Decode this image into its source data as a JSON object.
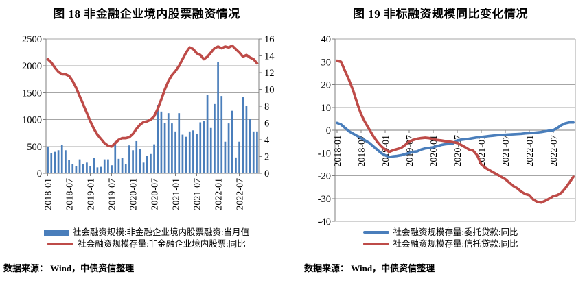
{
  "chart_data": [
    {
      "type": "bar+line",
      "title": "图 18 非金融企业境内股票融资情况",
      "source": "数据来源： Wind，中债资信整理",
      "x_start": "2018-01",
      "x_tick_labels": [
        "2018-01",
        "2018-07",
        "2019-01",
        "2019-07",
        "2020-01",
        "2020-07",
        "2021-01",
        "2021-07",
        "2022-01",
        "2022-07"
      ],
      "tick_every_months": 6,
      "grid": "horizontal",
      "legend_position": "bottom",
      "left_axis": {
        "min": 0,
        "max": 2500,
        "step": 500,
        "tick_labels": [
          "0",
          "500",
          "1000",
          "1500",
          "2000",
          "2500"
        ]
      },
      "right_axis": {
        "min": 0,
        "max": 16,
        "step": 2,
        "tick_labels": [
          "0",
          "2",
          "4",
          "6",
          "8",
          "10",
          "12",
          "14",
          "16"
        ]
      },
      "series": [
        {
          "name": "社会融资规模:非金融企业境内股票融资:当月值",
          "type": "bar",
          "axis": "left",
          "color": "#4a7ebb",
          "values": [
            500,
            380,
            400,
            430,
            530,
            430,
            250,
            170,
            140,
            260,
            170,
            200,
            130,
            290,
            110,
            120,
            260,
            260,
            150,
            590,
            270,
            290,
            170,
            520,
            430,
            600,
            450,
            200,
            330,
            360,
            540,
            1275,
            1150,
            940,
            1120,
            930,
            780,
            1120,
            720,
            680,
            780,
            800,
            740,
            950,
            970,
            1460,
            845,
            1290,
            2070,
            1440,
            590,
            930,
            1165,
            295,
            590,
            1420,
            1250,
            1015,
            780,
            780
          ]
        },
        {
          "name": "社会融资规模存量:非金融企业境内股票:同比",
          "type": "line",
          "axis": "right",
          "color": "#be4b48",
          "values": [
            13.6,
            13.2,
            12.6,
            12.1,
            11.8,
            11.8,
            11.6,
            11.0,
            10.2,
            9.2,
            8.2,
            7.2,
            6.2,
            5.3,
            4.6,
            4.1,
            3.6,
            3.3,
            3.2,
            3.6,
            4.0,
            4.2,
            4.2,
            4.3,
            4.7,
            5.3,
            5.8,
            6.1,
            6.2,
            6.4,
            6.8,
            7.7,
            8.8,
            10.0,
            11.0,
            11.7,
            12.2,
            12.8,
            13.6,
            14.4,
            15.0,
            14.8,
            14.3,
            14.1,
            13.6,
            13.9,
            14.4,
            14.9,
            15.1,
            14.9,
            15.1,
            15.0,
            15.2,
            14.8,
            14.4,
            13.9,
            14.1,
            13.8,
            13.6,
            13.1
          ]
        }
      ]
    },
    {
      "type": "line",
      "title": "图 19 非标融资规模同比变化情况",
      "source": "数据来源： Wind，中债资信整理",
      "x_start": "2018-01",
      "x_tick_labels": [
        "2018-01",
        "2018-07",
        "2019-01",
        "2019-07",
        "2020-01",
        "2020-07",
        "2021-01",
        "2021-07",
        "2022-01",
        "2022-07"
      ],
      "tick_every_months": 6,
      "grid": "horizontal",
      "legend_position": "bottom",
      "left_axis": {
        "min": -40,
        "max": 40,
        "step": 10,
        "tick_labels": [
          "-40",
          "-30",
          "-20",
          "-10",
          "0",
          "10",
          "20",
          "30",
          "40"
        ]
      },
      "series": [
        {
          "name": "社会融资规模存量:委托贷款:同比",
          "type": "line",
          "axis": "left",
          "color": "#4a7ebb",
          "values": [
            3.2,
            2.5,
            1.0,
            -0.5,
            -1.5,
            -2.5,
            -3.5,
            -4.5,
            -5.5,
            -7.0,
            -8.5,
            -10.0,
            -11.0,
            -11.8,
            -11.5,
            -11.3,
            -11.0,
            -10.5,
            -10.0,
            -9.5,
            -9.3,
            -8.5,
            -8.0,
            -7.8,
            -7.5,
            -7.0,
            -6.5,
            -6.2,
            -6.0,
            -5.8,
            -4.5,
            -4.2,
            -4.0,
            -3.8,
            -3.5,
            -3.2,
            -3.0,
            -2.8,
            -2.6,
            -2.4,
            -2.2,
            -2.1,
            -2.0,
            -1.9,
            -1.8,
            -1.7,
            -1.6,
            -1.4,
            -1.3,
            -1.2,
            -1.0,
            -0.8,
            -0.5,
            -0.2,
            0.0,
            1.0,
            2.2,
            3.0,
            3.4,
            3.4
          ]
        },
        {
          "name": "社会融资规模存量:信托贷款:同比",
          "type": "line",
          "axis": "left",
          "color": "#be4b48",
          "values": [
            30.5,
            30.0,
            26.0,
            22.0,
            17.5,
            12.0,
            7.0,
            3.5,
            0.5,
            -2.5,
            -5.0,
            -7.0,
            -8.5,
            -9.5,
            -8.8,
            -8.3,
            -7.8,
            -6.5,
            -5.0,
            -4.3,
            -3.8,
            -3.5,
            -3.3,
            -3.5,
            -4.0,
            -4.3,
            -4.5,
            -4.8,
            -5.0,
            -5.3,
            -5.5,
            -6.5,
            -7.5,
            -8.5,
            -9.0,
            -11.0,
            -15.0,
            -16.5,
            -17.5,
            -18.5,
            -19.5,
            -20.5,
            -21.5,
            -23.0,
            -24.5,
            -25.5,
            -27.0,
            -28.0,
            -28.5,
            -30.5,
            -31.5,
            -31.8,
            -31.0,
            -30.0,
            -29.0,
            -28.5,
            -27.5,
            -25.5,
            -23.0,
            -20.5
          ]
        }
      ]
    }
  ],
  "colors": {
    "grid": "#a6a6a6",
    "axis": "#7f7f7f",
    "bar_blue": "#4a7ebb",
    "line_red": "#be4b48"
  }
}
